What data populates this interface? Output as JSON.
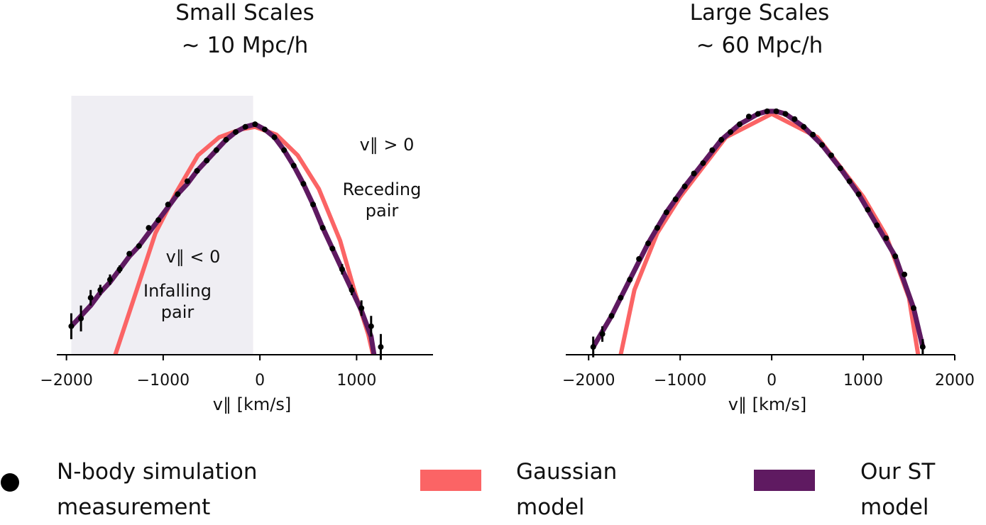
{
  "chart_data": [
    {
      "type": "line",
      "title": "Small Scales",
      "subtitle": "~ 10 Mpc/h",
      "xlabel": "v∥ [km/s]",
      "xlim": [
        -2100,
        1790
      ],
      "ylim": [
        0,
        1
      ],
      "xticks": [
        {
          "value": -2000,
          "label": "−2000"
        },
        {
          "value": -1000,
          "label": "−1000"
        },
        0,
        1000
      ],
      "shaded_span": [
        -1950,
        -70
      ],
      "annotations": [
        {
          "text": [
            "v∥ > 0"
          ]
        },
        {
          "text": [
            "Receding",
            "pair"
          ]
        },
        {
          "text": [
            "v∥ < 0"
          ]
        },
        {
          "text": [
            "Infalling",
            "pair"
          ]
        }
      ],
      "series": [
        {
          "name": "N-body simulation measurement",
          "color": "#000000",
          "x": [
            -1950,
            -1850,
            -1750,
            -1650,
            -1550,
            -1450,
            -1350,
            -1250,
            -1150,
            -1050,
            -950,
            -850,
            -750,
            -650,
            -550,
            -450,
            -350,
            -250,
            -150,
            -50,
            50,
            150,
            250,
            350,
            450,
            550,
            650,
            750,
            850,
            950,
            1050,
            1150,
            1250
          ],
          "values": [
            0.11,
            0.14,
            0.22,
            0.25,
            0.29,
            0.33,
            0.39,
            0.42,
            0.49,
            0.52,
            0.58,
            0.62,
            0.67,
            0.71,
            0.75,
            0.79,
            0.83,
            0.86,
            0.88,
            0.89,
            0.87,
            0.84,
            0.79,
            0.73,
            0.66,
            0.58,
            0.49,
            0.41,
            0.33,
            0.25,
            0.18,
            0.11,
            0.03
          ],
          "errors": [
            0.05,
            0.05,
            0.03,
            0.02,
            0.02,
            0.015,
            0.01,
            0.01,
            0.01,
            0.01,
            0.01,
            0.01,
            0.01,
            0.01,
            0.01,
            0.01,
            0.01,
            0.01,
            0.01,
            0.01,
            0.01,
            0.01,
            0.01,
            0.01,
            0.01,
            0.01,
            0.01,
            0.01,
            0.02,
            0.02,
            0.03,
            0.04,
            0.05
          ]
        },
        {
          "name": "Gaussian model",
          "color": "#fb6465",
          "x": [
            -1495,
            -1300,
            -1080,
            -860,
            -640,
            -420,
            -200,
            -50,
            170,
            390,
            610,
            830,
            975,
            1120,
            1170
          ],
          "values": [
            0,
            0.22,
            0.47,
            0.63,
            0.77,
            0.84,
            0.87,
            0.88,
            0.85,
            0.77,
            0.64,
            0.44,
            0.25,
            0.08,
            0
          ]
        },
        {
          "name": "Our ST model",
          "color": "#5f1a61",
          "x": [
            -1950,
            -1850,
            -1750,
            -1650,
            -1550,
            -1450,
            -1350,
            -1250,
            -1150,
            -1050,
            -950,
            -850,
            -750,
            -650,
            -550,
            -450,
            -350,
            -250,
            -150,
            -50,
            50,
            150,
            250,
            350,
            450,
            550,
            650,
            750,
            850,
            950,
            1050,
            1150,
            1180
          ],
          "values": [
            0.11,
            0.15,
            0.19,
            0.24,
            0.28,
            0.33,
            0.38,
            0.42,
            0.47,
            0.52,
            0.57,
            0.62,
            0.66,
            0.71,
            0.75,
            0.79,
            0.83,
            0.86,
            0.88,
            0.89,
            0.87,
            0.84,
            0.79,
            0.73,
            0.66,
            0.58,
            0.49,
            0.41,
            0.33,
            0.25,
            0.17,
            0.07,
            0
          ]
        }
      ]
    },
    {
      "type": "line",
      "title": "Large Scales",
      "subtitle": "~ 60 Mpc/h",
      "xlabel": "v∥ [km/s]",
      "xlim": [
        -2250,
        2000
      ],
      "ylim": [
        0,
        1
      ],
      "xticks": [
        {
          "value": -2000,
          "label": "−2000"
        },
        {
          "value": -1000,
          "label": "−1000"
        },
        0,
        1000,
        2000
      ],
      "series": [
        {
          "name": "N-body simulation measurement",
          "color": "#000000",
          "x": [
            -1950,
            -1850,
            -1750,
            -1650,
            -1550,
            -1450,
            -1350,
            -1250,
            -1150,
            -1050,
            -950,
            -850,
            -750,
            -650,
            -550,
            -450,
            -350,
            -250,
            -150,
            -50,
            50,
            150,
            250,
            350,
            450,
            550,
            650,
            750,
            850,
            950,
            1050,
            1150,
            1250,
            1350,
            1450,
            1550,
            1650
          ],
          "values": [
            0.03,
            0.08,
            0.15,
            0.22,
            0.29,
            0.37,
            0.43,
            0.49,
            0.55,
            0.6,
            0.65,
            0.7,
            0.74,
            0.79,
            0.83,
            0.86,
            0.89,
            0.92,
            0.93,
            0.94,
            0.94,
            0.93,
            0.91,
            0.88,
            0.85,
            0.81,
            0.77,
            0.72,
            0.67,
            0.62,
            0.56,
            0.5,
            0.45,
            0.38,
            0.31,
            0.18,
            0.03
          ],
          "errors": [
            0.04,
            0.03,
            0.01,
            0.01,
            0.01,
            0.01,
            0.01,
            0.01,
            0.01,
            0.01,
            0.01,
            0.01,
            0.01,
            0.01,
            0.01,
            0.01,
            0.01,
            0.01,
            0.01,
            0.01,
            0.01,
            0.01,
            0.01,
            0.01,
            0.01,
            0.01,
            0.01,
            0.01,
            0.01,
            0.01,
            0.01,
            0.01,
            0.01,
            0.01,
            0.01,
            0.01,
            0.03
          ]
        },
        {
          "name": "Gaussian model",
          "color": "#fb6465",
          "x": [
            -1650,
            -1500,
            -1250,
            -1000,
            -500,
            0,
            500,
            1000,
            1250,
            1500,
            1600
          ],
          "values": [
            0,
            0.25,
            0.47,
            0.61,
            0.84,
            0.93,
            0.84,
            0.61,
            0.46,
            0.22,
            0
          ]
        },
        {
          "name": "Our ST model",
          "color": "#5f1a61",
          "x": [
            -1950,
            -1750,
            -1550,
            -1350,
            -1150,
            -950,
            -750,
            -550,
            -350,
            -150,
            -50,
            50,
            150,
            350,
            550,
            750,
            950,
            1150,
            1350,
            1550,
            1650
          ],
          "values": [
            0.03,
            0.15,
            0.29,
            0.43,
            0.55,
            0.65,
            0.74,
            0.83,
            0.89,
            0.93,
            0.94,
            0.94,
            0.93,
            0.88,
            0.81,
            0.72,
            0.62,
            0.5,
            0.38,
            0.18,
            0.03
          ]
        }
      ]
    }
  ]
}
